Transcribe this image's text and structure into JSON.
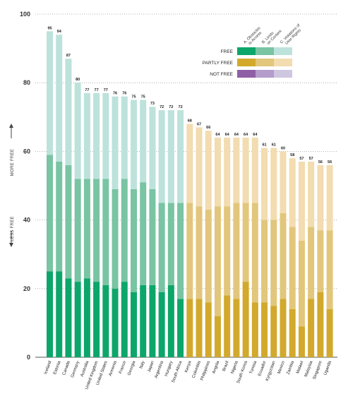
{
  "chart_data": {
    "type": "bar",
    "stacked": true,
    "ylim": [
      0,
      100
    ],
    "yticks": [
      0,
      20,
      40,
      60,
      80,
      100
    ],
    "grid": "horizontal dotted",
    "side_labels": {
      "up": "MORE FREE",
      "down": "LESS FREE"
    },
    "legend": {
      "placement": "top-right",
      "columns": [
        "A. Obstacles to Access",
        "B. Limits on Content",
        "C. Violations of User Rights"
      ],
      "rows": [
        {
          "label": "FREE",
          "colors": [
            "#0da66a",
            "#79c4a3",
            "#bde2dc"
          ]
        },
        {
          "label": "PARTLY FREE",
          "colors": [
            "#d2a92c",
            "#e2c67b",
            "#f2dcb0"
          ]
        },
        {
          "label": "NOT FREE",
          "colors": [
            "#8e5fa5",
            "#b49ccb",
            "#cfc6df"
          ]
        }
      ]
    },
    "categories": [
      "Iceland",
      "Estonia",
      "Canada",
      "Germany",
      "Australia",
      "United Kingdom",
      "United States",
      "Armenia",
      "France",
      "Georgia",
      "Italy",
      "Japan",
      "Argentina",
      "Hungary",
      "South Africa",
      "Kenya",
      "Colombia",
      "Philippines",
      "Angola",
      "Brazil",
      "Nigeria",
      "South Korea",
      "Tunisia",
      "Ecuador",
      "Kyrgyzstan",
      "Mexico",
      "Zambia",
      "Malawi",
      "Malaysia",
      "Singapore",
      "Uganda"
    ],
    "status": [
      "free",
      "free",
      "free",
      "free",
      "free",
      "free",
      "free",
      "free",
      "free",
      "free",
      "free",
      "free",
      "free",
      "free",
      "free",
      "partly",
      "partly",
      "partly",
      "partly",
      "partly",
      "partly",
      "partly",
      "partly",
      "partly",
      "partly",
      "partly",
      "partly",
      "partly",
      "partly",
      "partly",
      "partly"
    ],
    "series": [
      {
        "name": "A. Obstacles to Access",
        "values": [
          25,
          25,
          23,
          22,
          23,
          22,
          21,
          20,
          22,
          19,
          21,
          21,
          19,
          21,
          17,
          17,
          17,
          16,
          12,
          18,
          17,
          22,
          16,
          16,
          15,
          17,
          14,
          9,
          17,
          19,
          14
        ]
      },
      {
        "name": "B. Limits on Content",
        "values": [
          34,
          32,
          33,
          30,
          29,
          30,
          31,
          29,
          30,
          30,
          30,
          28,
          26,
          24,
          28,
          28,
          27,
          27,
          32,
          26,
          28,
          23,
          29,
          24,
          25,
          25,
          24,
          25,
          21,
          18,
          23
        ]
      },
      {
        "name": "C. Violations of User Rights",
        "values": [
          36,
          37,
          31,
          28,
          25,
          25,
          25,
          27,
          24,
          26,
          24,
          24,
          27,
          27,
          27,
          23,
          23,
          23,
          20,
          20,
          19,
          19,
          19,
          21,
          21,
          18,
          20,
          23,
          19,
          19,
          19
        ]
      }
    ],
    "totals": [
      95,
      94,
      87,
      80,
      77,
      77,
      77,
      76,
      76,
      75,
      75,
      73,
      72,
      72,
      72,
      68,
      67,
      66,
      64,
      64,
      64,
      64,
      64,
      61,
      61,
      60,
      58,
      57,
      57,
      56,
      56
    ]
  }
}
